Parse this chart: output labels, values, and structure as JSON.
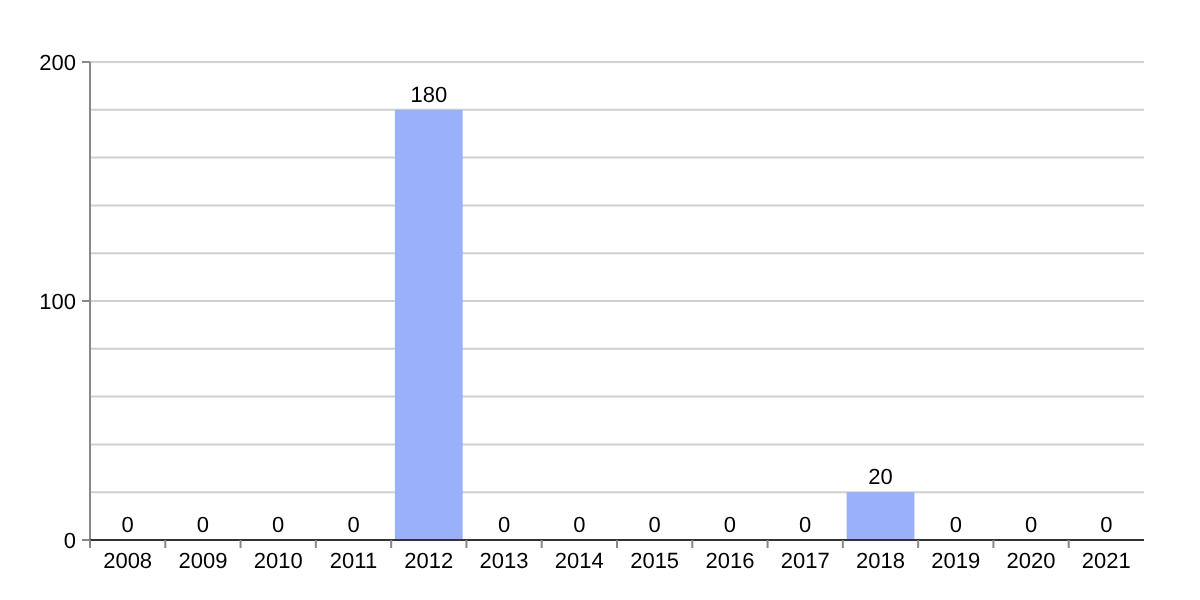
{
  "chart_data": {
    "type": "bar",
    "categories": [
      "2008",
      "2009",
      "2010",
      "2011",
      "2012",
      "2013",
      "2014",
      "2015",
      "2016",
      "2017",
      "2018",
      "2019",
      "2020",
      "2021"
    ],
    "values": [
      0,
      0,
      0,
      0,
      180,
      0,
      0,
      0,
      0,
      0,
      20,
      0,
      0,
      0
    ],
    "color": "#9ab0f8",
    "data_labels": true,
    "grid": "y",
    "ylim": [
      0,
      200
    ],
    "yticks": [
      0,
      {
        "value": 20,
        "label": null
      },
      {
        "value": 40,
        "label": null
      },
      {
        "value": 60,
        "label": null
      },
      {
        "value": 80,
        "label": null
      },
      100,
      {
        "value": 120,
        "label": null
      },
      {
        "value": 140,
        "label": null
      },
      {
        "value": 160,
        "label": null
      },
      {
        "value": 180,
        "label": null
      },
      200
    ]
  }
}
